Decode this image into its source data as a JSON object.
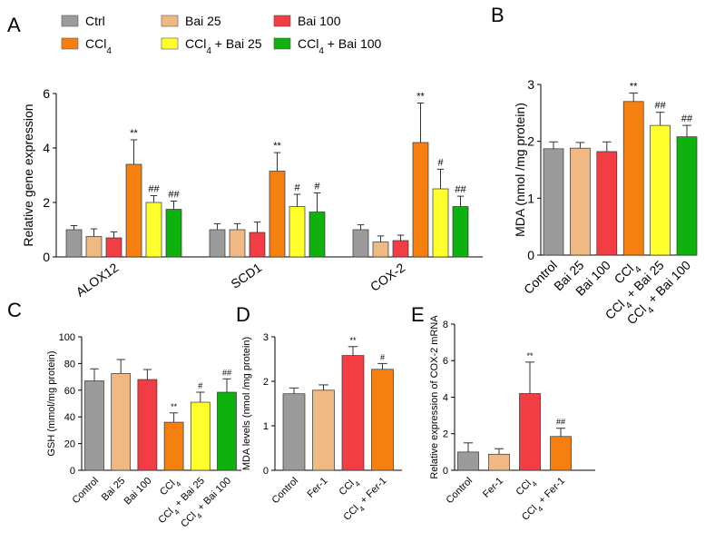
{
  "colors": {
    "ctrl": "#9b9b9b",
    "ccl4": "#f5800f",
    "bai25": "#f0b882",
    "ccl4_bai25": "#ffff2b",
    "bai100": "#f23d45",
    "ccl4_bai100": "#0fb10f"
  },
  "legend": [
    {
      "label": "Ctrl",
      "color_key": "ctrl"
    },
    {
      "label": "CCl4",
      "color_key": "ccl4"
    },
    {
      "label": "Bai 25",
      "color_key": "bai25"
    },
    {
      "label": "CCl4 + Bai 25",
      "color_key": "ccl4_bai25"
    },
    {
      "label": "Bai 100",
      "color_key": "bai100"
    },
    {
      "label": "CCl4 + Bai 100",
      "color_key": "ccl4_bai100"
    }
  ],
  "chart_data": [
    {
      "panel": "A",
      "type": "bar",
      "ylabel": "Relative gene expression",
      "ylim": [
        0,
        6
      ],
      "yticks": [
        "0",
        "2",
        "4",
        "6"
      ],
      "categories": [
        "ALOX12",
        "SCD1",
        "COX-2"
      ],
      "series": [
        {
          "name": "Ctrl",
          "color_key": "ctrl",
          "values": [
            1.0,
            1.0,
            1.0
          ],
          "errors": [
            0.15,
            0.22,
            0.18
          ],
          "marks": [
            "",
            "",
            ""
          ]
        },
        {
          "name": "Bai 25",
          "color_key": "bai25",
          "values": [
            0.75,
            1.0,
            0.55
          ],
          "errors": [
            0.28,
            0.22,
            0.22
          ],
          "marks": [
            "",
            "",
            ""
          ]
        },
        {
          "name": "Bai 100",
          "color_key": "bai100",
          "values": [
            0.7,
            0.9,
            0.6
          ],
          "errors": [
            0.22,
            0.38,
            0.2
          ],
          "marks": [
            "",
            "",
            ""
          ]
        },
        {
          "name": "CCl4",
          "color_key": "ccl4",
          "values": [
            3.4,
            3.15,
            4.2
          ],
          "errors": [
            0.9,
            0.68,
            1.45
          ],
          "marks": [
            "**",
            "**",
            "**"
          ]
        },
        {
          "name": "CCl4 + Bai 25",
          "color_key": "ccl4_bai25",
          "values": [
            2.0,
            1.85,
            2.5
          ],
          "errors": [
            0.25,
            0.45,
            0.72
          ],
          "marks": [
            "##",
            "#",
            "#"
          ]
        },
        {
          "name": "CCl4 + Bai 100",
          "color_key": "ccl4_bai100",
          "values": [
            1.75,
            1.65,
            1.85
          ],
          "errors": [
            0.3,
            0.7,
            0.38
          ],
          "marks": [
            "##",
            "#",
            "##"
          ]
        }
      ]
    },
    {
      "panel": "B",
      "type": "bar",
      "ylabel": "MDA (nmol /mg protein)",
      "ylim": [
        0,
        3
      ],
      "yticks": [
        "0",
        "1",
        "2",
        "3"
      ],
      "categories": [
        "Control",
        "Bai 25",
        "Bai 100",
        "CCl4",
        "CCl4 + Bai 25",
        "CCl4 + Bai 100"
      ],
      "color_keys": [
        "ctrl",
        "bai25",
        "bai100",
        "ccl4",
        "ccl4_bai25",
        "ccl4_bai100"
      ],
      "values": [
        1.87,
        1.88,
        1.82,
        2.7,
        2.28,
        2.08
      ],
      "errors": [
        0.12,
        0.1,
        0.17,
        0.15,
        0.23,
        0.2
      ],
      "marks": [
        "",
        "",
        "",
        "**",
        "##",
        "##"
      ]
    },
    {
      "panel": "C",
      "type": "bar",
      "ylabel": "GSH (mmol/mg protein)",
      "ylim": [
        0,
        100
      ],
      "yticks": [
        "0",
        "20",
        "40",
        "60",
        "80",
        "100"
      ],
      "categories": [
        "Control",
        "Bai 25",
        "Bai 100",
        "CCl4",
        "CCl4 + Bai 25",
        "CCl4 + Bai 100"
      ],
      "color_keys": [
        "ctrl",
        "bai25",
        "bai100",
        "ccl4",
        "ccl4_bai25",
        "ccl4_bai100"
      ],
      "values": [
        67,
        72.5,
        68,
        36,
        51,
        58.5
      ],
      "errors": [
        9,
        10.5,
        7.5,
        7,
        7.5,
        10
      ],
      "marks": [
        "",
        "",
        "",
        "**",
        "#",
        "##"
      ]
    },
    {
      "panel": "D",
      "type": "bar",
      "ylabel": "MDA levels (nmol /mg protein)",
      "ylim": [
        0,
        3
      ],
      "yticks": [
        "0",
        "1",
        "2",
        "3"
      ],
      "categories": [
        "Control",
        "Fer-1",
        "CCl4",
        "CCl4 + Fer-1"
      ],
      "color_keys": [
        "ctrl",
        "bai25",
        "bai100",
        "ccl4"
      ],
      "values": [
        1.72,
        1.8,
        2.58,
        2.27
      ],
      "errors": [
        0.13,
        0.12,
        0.2,
        0.13
      ],
      "marks": [
        "",
        "",
        "**",
        "#"
      ]
    },
    {
      "panel": "E",
      "type": "bar",
      "ylabel": "Relative expression of COX-2 mRNA",
      "ylim": [
        0,
        8
      ],
      "yticks": [
        "0",
        "2",
        "4",
        "6",
        "8"
      ],
      "categories": [
        "Control",
        "Fer-1",
        "CCl4",
        "CCl4 + Fer-1"
      ],
      "color_keys": [
        "ctrl",
        "bai25",
        "bai100",
        "ccl4"
      ],
      "values": [
        1.0,
        0.88,
        4.2,
        1.85
      ],
      "errors": [
        0.5,
        0.3,
        1.72,
        0.45
      ],
      "marks": [
        "",
        "",
        "**",
        "##"
      ]
    }
  ]
}
